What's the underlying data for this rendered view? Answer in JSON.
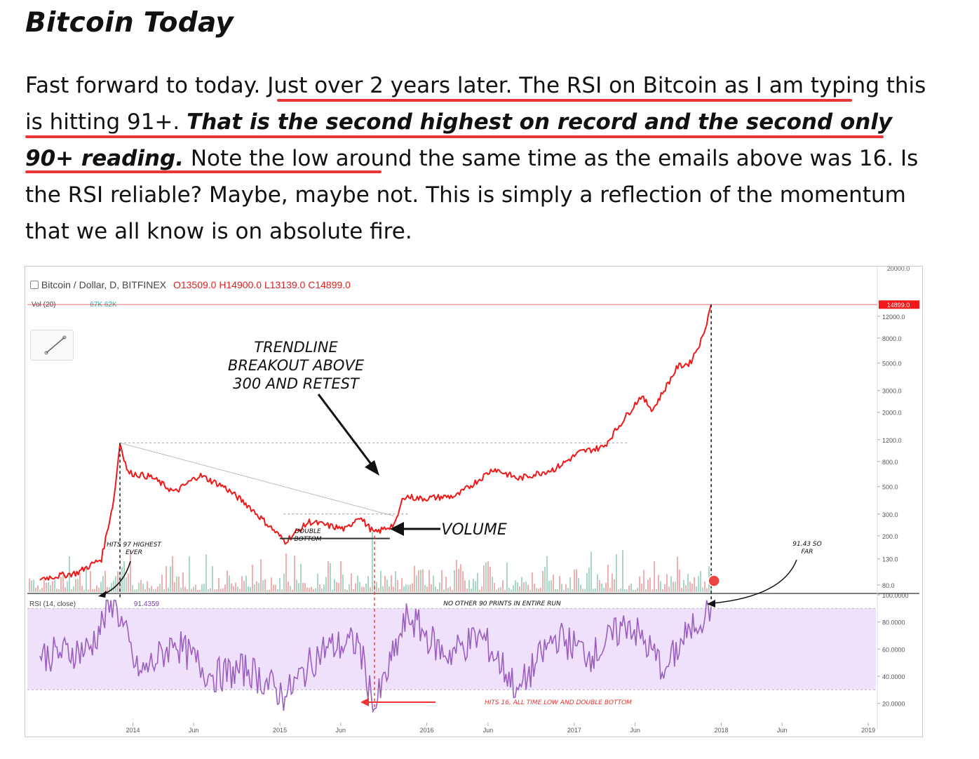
{
  "article": {
    "title": "Bitcoin Today",
    "p_plain_1": "Fast forward to today. Just over 2 years later. The RSI on Bitcoin as I am typing this is hitting 91+. ",
    "p_bold": "That is the second highest on record and the second only 90+ reading.",
    "p_plain_2": " Note the low around the same time as the emails above was 16. Is the RSI reliable? Maybe, maybe not. This is simply a reflection of the momentum that we all know is on absolute fire."
  },
  "chart_header": {
    "symbol": "Bitcoin / Dollar, D, BITFINEX",
    "ohlc": "O13509.0  H14900.0  L13139.0  C14899.0",
    "vol_label": "Vol (20)",
    "vol_values": "67K  62K",
    "rsi_label": "RSI (14, close)",
    "rsi_value": "91.4359"
  },
  "annotations": {
    "trendline": [
      "TRENDLINE",
      "BREAKOUT ABOVE",
      "300 AND RETEST"
    ],
    "double_bottom": [
      "DOUBLE",
      "BOTTOM"
    ],
    "volume": "VOLUME",
    "hits97": [
      "HITS 97 HIGHEST",
      "EVER"
    ],
    "so_far": [
      "91.43 SO",
      "FAR"
    ],
    "no_other": "NO OTHER 90 PRINTS IN ENTIRE RUN",
    "hits16": "HITS 16, ALL TIME LOW AND DOUBLE BOTTOM"
  },
  "colors": {
    "price": "#f01818",
    "rsi": "#9b5fc0",
    "rsi_band": "#efe0fb",
    "underline": "#e52020"
  },
  "chart_data": [
    {
      "type": "line",
      "title": "Bitcoin / Dollar, D, BITFINEX",
      "y_scale": "log",
      "y_tick_labels": [
        "20000.0",
        "12000.0",
        "8000.0",
        "5000.0",
        "3000.0",
        "2000.0",
        "1200.0",
        "800.0",
        "500.0",
        "300.0",
        "200.0",
        "130.0",
        "80.0"
      ],
      "x_tick_labels": [
        "2014",
        "Jun",
        "2015",
        "Jun",
        "2016",
        "Jun",
        "2017",
        "Jun",
        "2018",
        "Jun",
        "2019"
      ],
      "current_price_label": "14899.0",
      "series": [
        {
          "x": [
            "2013-05",
            "2013-08",
            "2013-10",
            "2013-11-15",
            "2013-11-30",
            "2013-12-20",
            "2014-02",
            "2014-04",
            "2014-06",
            "2014-08",
            "2014-10",
            "2015-01-14",
            "2015-03",
            "2015-06",
            "2015-07",
            "2015-08-24",
            "2015-10",
            "2015-11-04",
            "2015-12",
            "2016-03",
            "2016-06",
            "2016-08",
            "2016-11",
            "2017-01",
            "2017-03",
            "2017-06",
            "2017-07",
            "2017-09",
            "2017-10",
            "2017-11",
            "2017-12-07"
          ],
          "y": [
            90,
            100,
            130,
            400,
            1130,
            650,
            600,
            450,
            620,
            500,
            350,
            180,
            260,
            225,
            290,
            210,
            250,
            420,
            400,
            420,
            700,
            580,
            700,
            950,
            1050,
            2700,
            2100,
            4700,
            5000,
            8000,
            14899
          ]
        }
      ]
    },
    {
      "type": "line",
      "title": "RSI (14, close)",
      "y_tick_labels": [
        "100.0000",
        "80.0000",
        "60.0000",
        "40.0000",
        "20.0000"
      ],
      "ylim": [
        10,
        100
      ],
      "x": [
        "2013-05",
        "2013-09",
        "2013-11",
        "2014-01",
        "2014-04",
        "2014-07",
        "2014-10",
        "2015-01-14",
        "2015-04",
        "2015-07",
        "2015-08-24",
        "2015-11",
        "2016-02",
        "2016-05",
        "2016-08",
        "2016-11",
        "2017-02",
        "2017-05",
        "2017-08",
        "2017-10",
        "2017-12-07"
      ],
      "values": [
        55,
        60,
        97,
        40,
        65,
        40,
        45,
        25,
        60,
        65,
        16,
        85,
        55,
        70,
        30,
        70,
        55,
        80,
        45,
        75,
        91.43
      ]
    }
  ]
}
